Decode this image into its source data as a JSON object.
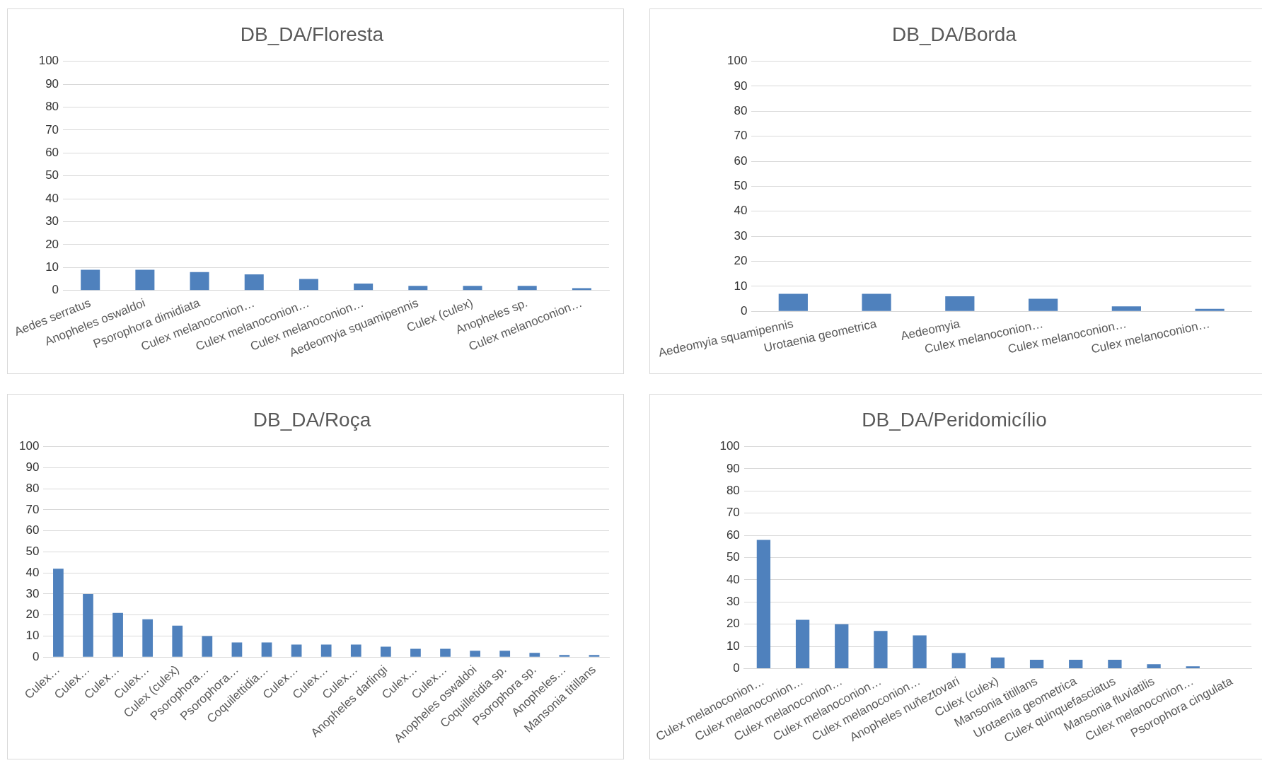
{
  "chart_data": [
    {
      "type": "bar",
      "title": "DB_DA/Floresta",
      "categories": [
        "Aedes serratus",
        "Anopheles oswaldoi",
        "Psorophora dimidiata",
        "Culex melanoconion…",
        "Culex melanoconion…",
        "Culex melanoconion…",
        "Aedeomyia squamipennis",
        "Culex (culex)",
        "Anopheles sp.",
        "Culex melanoconion…"
      ],
      "values": [
        9,
        9,
        8,
        7,
        5,
        3,
        2,
        2,
        2,
        1
      ],
      "color": "#4f81bd",
      "ylim": [
        0,
        100
      ],
      "yticks": [
        0,
        10,
        20,
        30,
        40,
        50,
        60,
        70,
        80,
        90,
        100
      ],
      "grid": "y"
    },
    {
      "type": "bar",
      "title": "DB_DA/Borda",
      "categories": [
        "Aedeomyia squamipennis",
        "Urotaenia geometrica",
        "Aedeomyia",
        "Culex melanoconion…",
        "Culex melanoconion…",
        "Culex melanoconion…"
      ],
      "values": [
        7,
        7,
        6,
        5,
        2,
        1
      ],
      "color": "#4f81bd",
      "ylim": [
        0,
        100
      ],
      "yticks": [
        0,
        10,
        20,
        30,
        40,
        50,
        60,
        70,
        80,
        90,
        100
      ],
      "grid": "y"
    },
    {
      "type": "bar",
      "title": "DB_DA/Roça",
      "categories": [
        "Culex…",
        "Culex…",
        "Culex…",
        "Culex…",
        "Culex (culex)",
        "Psorophora…",
        "Psorophora…",
        "Coquilettidia…",
        "Culex…",
        "Culex…",
        "Culex…",
        "Anopheles darlingi",
        "Culex…",
        "Culex…",
        "Anopheles oswaldoi",
        "Coquilletidia sp.",
        "Psorophora sp.",
        "Anopheles…",
        "Mansonia titillans"
      ],
      "values": [
        42,
        30,
        21,
        18,
        15,
        10,
        7,
        7,
        6,
        6,
        6,
        5,
        4,
        4,
        3,
        3,
        2,
        1,
        1
      ],
      "color": "#4f81bd",
      "ylim": [
        0,
        100
      ],
      "yticks": [
        0,
        10,
        20,
        30,
        40,
        50,
        60,
        70,
        80,
        90,
        100
      ],
      "grid": "y"
    },
    {
      "type": "bar",
      "title": "DB_DA/Peridomicílio",
      "categories": [
        "Culex melanoconion…",
        "Culex melanoconion…",
        "Culex melanoconion…",
        "Culex melanoconion…",
        "Culex melanoconion…",
        "Anopheles nuñeztovari",
        "Culex (culex)",
        "Mansonia titillans",
        "Urotaenia geometrica",
        "Culex quinquefasciatus",
        "Mansonia fluviatilis",
        "Culex melanoconion…",
        "Psorophora cingulata"
      ],
      "values": [
        58,
        22,
        20,
        17,
        15,
        7,
        5,
        4,
        4,
        4,
        2,
        1,
        0
      ],
      "color": "#4f81bd",
      "ylim": [
        0,
        100
      ],
      "yticks": [
        0,
        10,
        20,
        30,
        40,
        50,
        60,
        70,
        80,
        90,
        100
      ],
      "grid": "y"
    }
  ]
}
